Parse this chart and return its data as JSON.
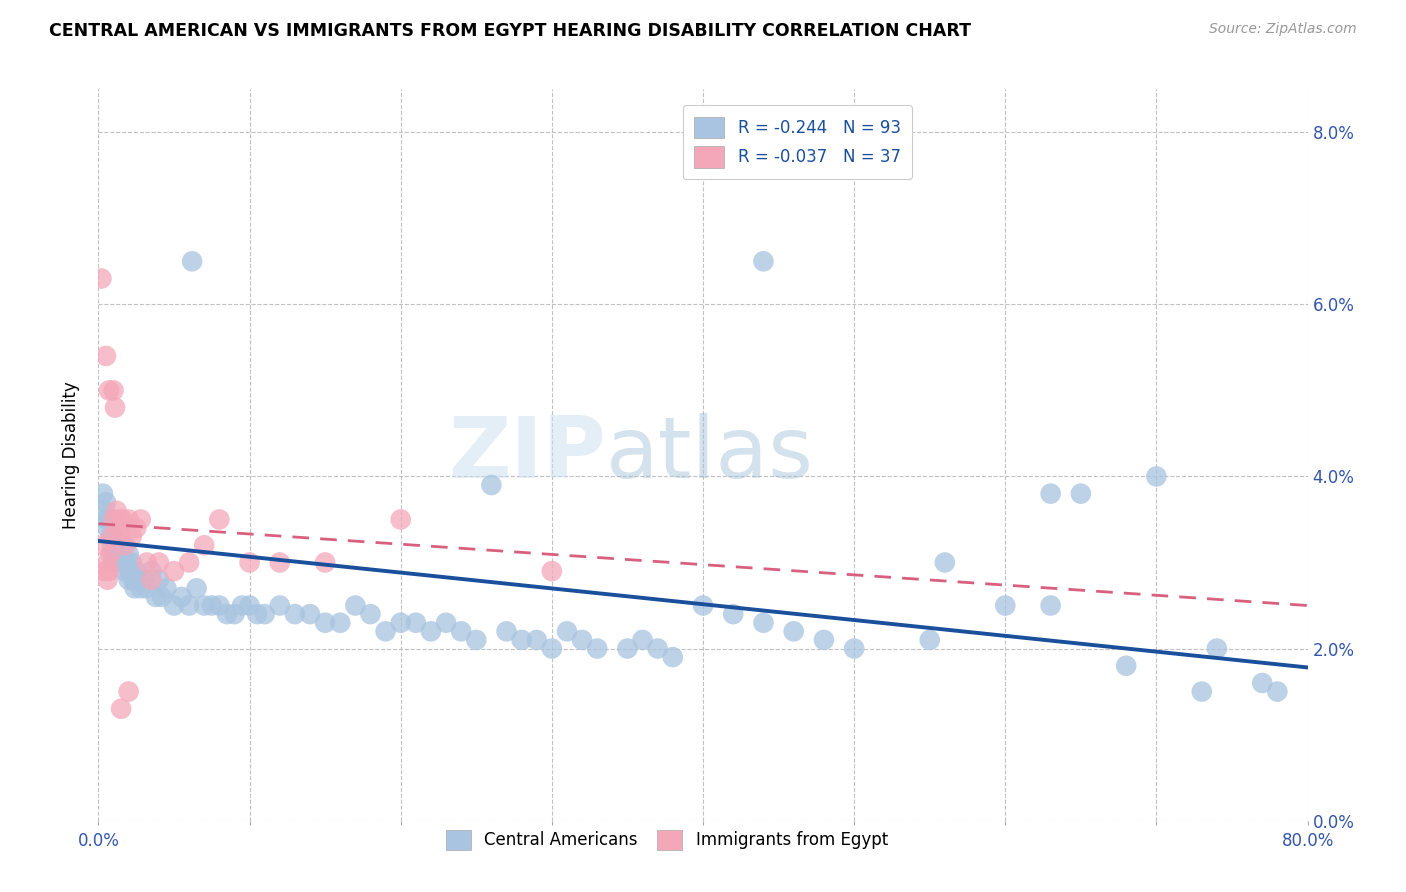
{
  "title": "CENTRAL AMERICAN VS IMMIGRANTS FROM EGYPT HEARING DISABILITY CORRELATION CHART",
  "source": "Source: ZipAtlas.com",
  "ylabel": "Hearing Disability",
  "xlim": [
    0.0,
    80.0
  ],
  "ylim": [
    0.0,
    8.5
  ],
  "blue_R": -0.244,
  "blue_N": 93,
  "pink_R": -0.037,
  "pink_N": 37,
  "blue_color": "#a8c4e0",
  "pink_color": "#f4a7b9",
  "blue_line_color": "#1a4f9c",
  "pink_line_color": "#d95f7f",
  "watermark_zip": "ZIP",
  "watermark_atlas": "atlas",
  "blue_label": "Central Americans",
  "pink_label": "Immigrants from Egypt",
  "blue_line_start_y": 3.25,
  "blue_line_end_y": 1.78,
  "pink_line_start_y": 3.45,
  "pink_line_end_y": 2.5,
  "blue_x": [
    0.3,
    0.4,
    0.5,
    0.5,
    0.6,
    0.7,
    0.8,
    0.9,
    1.0,
    1.0,
    1.1,
    1.2,
    1.3,
    1.4,
    1.5,
    1.6,
    1.7,
    1.8,
    2.0,
    2.0,
    2.1,
    2.2,
    2.3,
    2.4,
    2.5,
    2.6,
    2.8,
    3.0,
    3.2,
    3.5,
    3.8,
    4.0,
    4.2,
    4.5,
    5.0,
    5.5,
    6.0,
    6.5,
    7.0,
    7.5,
    8.0,
    8.5,
    9.0,
    9.5,
    10.0,
    10.5,
    11.0,
    12.0,
    13.0,
    14.0,
    15.0,
    16.0,
    17.0,
    18.0,
    19.0,
    20.0,
    21.0,
    22.0,
    23.0,
    24.0,
    25.0,
    27.0,
    28.0,
    29.0,
    30.0,
    31.0,
    32.0,
    33.0,
    35.0,
    36.0,
    37.0,
    38.0,
    40.0,
    42.0,
    44.0,
    46.0,
    48.0,
    50.0,
    55.0,
    60.0,
    63.0,
    65.0,
    68.0,
    73.0,
    77.0,
    6.2,
    26.0,
    44.0,
    56.0,
    63.0,
    70.0,
    74.0,
    78.0
  ],
  "blue_y": [
    3.8,
    3.6,
    3.5,
    3.7,
    3.4,
    3.5,
    3.3,
    3.2,
    3.3,
    3.0,
    3.1,
    3.1,
    3.2,
    3.0,
    3.1,
    3.2,
    2.9,
    3.0,
    3.1,
    2.8,
    2.9,
    3.0,
    2.8,
    2.7,
    2.9,
    2.8,
    2.7,
    2.8,
    2.7,
    2.9,
    2.6,
    2.8,
    2.6,
    2.7,
    2.5,
    2.6,
    2.5,
    2.7,
    2.5,
    2.5,
    2.5,
    2.4,
    2.4,
    2.5,
    2.5,
    2.4,
    2.4,
    2.5,
    2.4,
    2.4,
    2.3,
    2.3,
    2.5,
    2.4,
    2.2,
    2.3,
    2.3,
    2.2,
    2.3,
    2.2,
    2.1,
    2.2,
    2.1,
    2.1,
    2.0,
    2.2,
    2.1,
    2.0,
    2.0,
    2.1,
    2.0,
    1.9,
    2.5,
    2.4,
    2.3,
    2.2,
    2.1,
    2.0,
    2.1,
    2.5,
    2.5,
    3.8,
    1.8,
    1.5,
    1.6,
    6.5,
    3.9,
    6.5,
    3.0,
    3.8,
    4.0,
    2.0,
    1.5
  ],
  "pink_x": [
    0.2,
    0.3,
    0.4,
    0.5,
    0.6,
    0.6,
    0.7,
    0.7,
    0.8,
    0.9,
    1.0,
    1.0,
    1.1,
    1.2,
    1.3,
    1.4,
    1.5,
    1.6,
    1.8,
    2.0,
    2.2,
    2.5,
    2.8,
    3.2,
    3.5,
    4.0,
    5.0,
    6.0,
    7.0,
    8.0,
    10.0,
    12.0,
    15.0,
    20.0,
    30.0,
    1.5,
    2.0
  ],
  "pink_y": [
    6.3,
    3.2,
    2.9,
    5.4,
    2.8,
    3.0,
    2.9,
    5.0,
    3.1,
    3.3,
    5.0,
    3.5,
    4.8,
    3.6,
    3.4,
    3.5,
    3.3,
    3.5,
    3.2,
    3.5,
    3.3,
    3.4,
    3.5,
    3.0,
    2.8,
    3.0,
    2.9,
    3.0,
    3.2,
    3.5,
    3.0,
    3.0,
    3.0,
    3.5,
    2.9,
    1.3,
    1.5
  ]
}
